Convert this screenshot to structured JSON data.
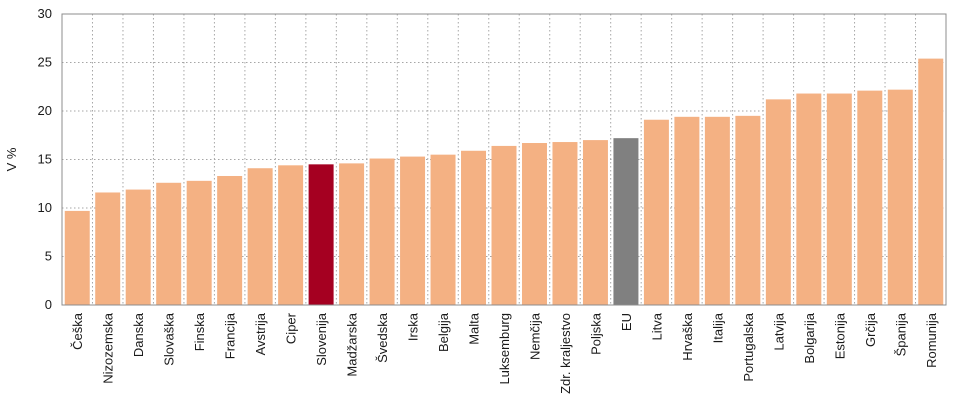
{
  "chart_data": {
    "type": "bar",
    "ylabel": "V %",
    "ylim": [
      0,
      30
    ],
    "yticks": [
      "0",
      "5",
      "10",
      "15",
      "20",
      "25",
      "30"
    ],
    "grid": true,
    "colors": {
      "default": "#f4b183",
      "highlight_slovenia": "#a50021",
      "highlight_eu": "#808080"
    },
    "categories": [
      "Češka",
      "Nizozemska",
      "Danska",
      "Slovaška",
      "Finska",
      "Francija",
      "Avstrija",
      "Ciper",
      "Slovenija",
      "Madžarska",
      "Švedska",
      "Irska",
      "Belgija",
      "Malta",
      "Luksemburg",
      "Nemčija",
      "Zdr. kraljestvo",
      "Poljska",
      "EU",
      "Litva",
      "Hrvaška",
      "Italija",
      "Portugalska",
      "Latvija",
      "Bolgarija",
      "Estonija",
      "Grčija",
      "Španija",
      "Romunija"
    ],
    "values": [
      9.7,
      11.6,
      11.9,
      12.6,
      12.8,
      13.3,
      14.1,
      14.4,
      14.5,
      14.6,
      15.1,
      15.3,
      15.5,
      15.9,
      16.4,
      16.7,
      16.8,
      17.0,
      17.2,
      19.1,
      19.4,
      19.4,
      19.5,
      21.2,
      21.8,
      21.8,
      22.1,
      22.2,
      25.4
    ],
    "highlights": {
      "Slovenija": "highlight_slovenia",
      "EU": "highlight_eu"
    }
  }
}
